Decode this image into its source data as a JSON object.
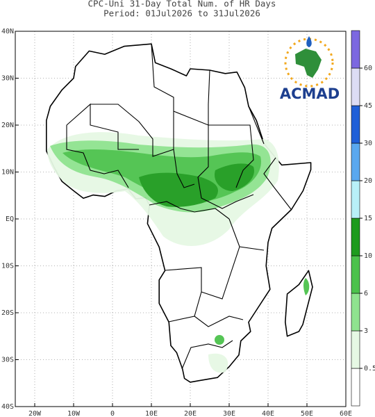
{
  "title": "CPC-Uni 31-Day Total Num. of HR Days",
  "subtitle": "Period: 01Jul2026 to 31Jul2026",
  "map": {
    "xlim": [
      -25,
      60
    ],
    "ylim": [
      -40,
      40
    ],
    "xticks": [
      {
        "value": -20,
        "label": "20W"
      },
      {
        "value": -10,
        "label": "10W"
      },
      0,
      {
        "value": 10,
        "label": "10E"
      },
      {
        "value": 20,
        "label": "20E"
      },
      {
        "value": 30,
        "label": "30E"
      },
      {
        "value": 40,
        "label": "40E"
      },
      {
        "value": 50,
        "label": "50E"
      },
      {
        "value": 60,
        "label": "60E"
      }
    ],
    "yticks": [
      {
        "value": 40,
        "label": "40N"
      },
      {
        "value": 30,
        "label": "30N"
      },
      {
        "value": 20,
        "label": "20N"
      },
      {
        "value": 10,
        "label": "10N"
      },
      {
        "value": 0,
        "label": "EQ"
      },
      {
        "value": -10,
        "label": "10S"
      },
      {
        "value": -20,
        "label": "20S"
      },
      {
        "value": -30,
        "label": "30S"
      },
      {
        "value": -40,
        "label": "40S"
      }
    ],
    "grid": true
  },
  "colorbar": {
    "bounds": [
      0.5,
      3,
      6,
      10,
      15,
      20,
      30,
      45,
      60
    ],
    "colors": [
      "#ffffff",
      "#e6f8e4",
      "#8fe38f",
      "#4cc24c",
      "#1e9b1e",
      "#b8f0f8",
      "#5aa8ef",
      "#1f5fd8",
      "#dcdcf4",
      "#7c68e0"
    ]
  },
  "logo": {
    "text": "ACMAD"
  }
}
